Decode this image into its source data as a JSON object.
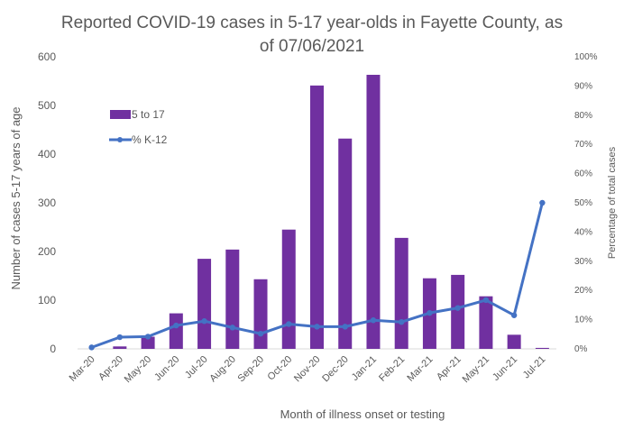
{
  "chart_data": {
    "type": "bar",
    "title": "Reported COVID-19 cases in 5-17 year-olds in Fayette County, as of 07/06/2021",
    "title_lines": [
      "Reported COVID-19 cases in 5-17 year-olds in Fayette County, as",
      "of 07/06/2021"
    ],
    "xlabel": "Month of illness onset or testing",
    "ylabel": "Number of cases 5-17 years of age",
    "y2label": "Percentage of total cases",
    "categories": [
      "Mar-20",
      "Apr-20",
      "May-20",
      "Jun-20",
      "Jul-20",
      "Aug-20",
      "Sep-20",
      "Oct-20",
      "Nov-20",
      "Dec-20",
      "Jan-21",
      "Feb-21",
      "Mar-21",
      "Apr-21",
      "May-21",
      "Jun-21",
      "Jul-21"
    ],
    "ylim": [
      0,
      600
    ],
    "y_ticks": [
      "0",
      "100",
      "200",
      "300",
      "400",
      "500",
      "600"
    ],
    "y2lim": [
      0,
      100
    ],
    "y2_ticks": [
      "0%",
      "10%",
      "20%",
      "30%",
      "40%",
      "50%",
      "60%",
      "70%",
      "80%",
      "90%",
      "100%"
    ],
    "legend_position": "upper-left",
    "series": [
      {
        "name": "5 to 17",
        "kind": "bar",
        "axis": "left",
        "color": "#7030A0",
        "values": [
          0,
          5,
          25,
          73,
          185,
          204,
          143,
          245,
          541,
          432,
          563,
          228,
          145,
          152,
          108,
          29,
          2
        ]
      },
      {
        "name": "% K-12",
        "kind": "line",
        "axis": "right",
        "color": "#4472C4",
        "values": [
          0.5,
          4,
          4.2,
          8,
          9.5,
          7.3,
          5.2,
          8.5,
          7.6,
          7.6,
          9.8,
          9.2,
          12.3,
          14,
          16.7,
          11.5,
          50
        ]
      }
    ]
  }
}
